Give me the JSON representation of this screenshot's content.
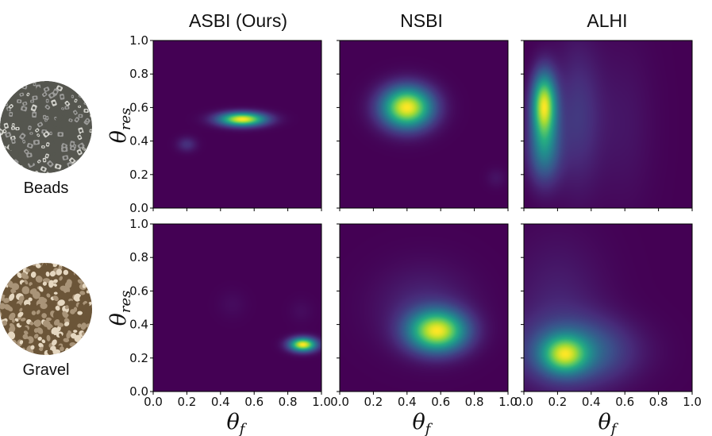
{
  "figure": {
    "columns": [
      "ASBI (Ours)",
      "NSBI",
      "ALHI"
    ],
    "rows": [
      {
        "label": "Beads",
        "texture": {
          "name": "beads-texture",
          "base": "#9a9a98",
          "dark": "#55564f",
          "light": "#d2d2cc"
        }
      },
      {
        "label": "Gravel",
        "texture": {
          "name": "gravel-texture",
          "base": "#a99478",
          "dark": "#6b5538",
          "light": "#e5d7c0"
        }
      }
    ],
    "xlabel": {
      "symbol": "θ",
      "subscript": "f"
    },
    "ylabel": {
      "symbol": "θ",
      "subscript": "res"
    },
    "colormap": "viridis",
    "colors": {
      "min": "#440154",
      "mid": "#21918c",
      "max": "#fde725"
    }
  },
  "chart_data": [
    {
      "type": "heatmap",
      "row": "Beads",
      "column": "ASBI (Ours)",
      "xlabel": "θf",
      "ylabel": "θres",
      "xlim": [
        0,
        1
      ],
      "ylim": [
        0,
        1
      ],
      "xticks": [
        "0.0",
        "0.2",
        "0.4",
        "0.6",
        "0.8",
        "1.0"
      ],
      "yticks": [
        "0.0",
        "0.2",
        "0.4",
        "0.6",
        "0.8",
        "1.0"
      ],
      "modes": [
        {
          "x": 0.53,
          "y": 0.53,
          "sx": 0.095,
          "sy": 0.028,
          "w": 1.0
        },
        {
          "x": 0.2,
          "y": 0.38,
          "sx": 0.04,
          "sy": 0.03,
          "w": 0.14
        }
      ]
    },
    {
      "type": "heatmap",
      "row": "Beads",
      "column": "NSBI",
      "xlim": [
        0,
        1
      ],
      "ylim": [
        0,
        1
      ],
      "xticks": [
        "0.0",
        "0.2",
        "0.4",
        "0.6",
        "0.8",
        "1.0"
      ],
      "yticks": [
        "0.0",
        "0.2",
        "0.4",
        "0.6",
        "0.8",
        "1.0"
      ],
      "modes": [
        {
          "x": 0.4,
          "y": 0.6,
          "sx": 0.105,
          "sy": 0.085,
          "w": 1.0
        },
        {
          "x": 0.93,
          "y": 0.18,
          "sx": 0.04,
          "sy": 0.04,
          "w": 0.05
        }
      ]
    },
    {
      "type": "heatmap",
      "row": "Beads",
      "column": "ALHI",
      "xlim": [
        0,
        1
      ],
      "ylim": [
        0,
        1
      ],
      "xticks": [
        "0.0",
        "0.2",
        "0.4",
        "0.6",
        "0.8",
        "1.0"
      ],
      "yticks": [
        "0.0",
        "0.2",
        "0.4",
        "0.6",
        "0.8",
        "1.0"
      ],
      "modes": [
        {
          "x": 0.12,
          "y": 0.62,
          "sx": 0.05,
          "sy": 0.13,
          "w": 1.0
        },
        {
          "x": 0.12,
          "y": 0.35,
          "sx": 0.065,
          "sy": 0.14,
          "w": 0.45
        },
        {
          "x": 0.32,
          "y": 0.55,
          "sx": 0.1,
          "sy": 0.3,
          "w": 0.18
        },
        {
          "x": 0.6,
          "y": 0.5,
          "sx": 0.12,
          "sy": 0.35,
          "w": 0.06
        }
      ]
    },
    {
      "type": "heatmap",
      "row": "Gravel",
      "column": "ASBI (Ours)",
      "xlabel": "θf",
      "ylabel": "θres",
      "xlim": [
        0,
        1
      ],
      "ylim": [
        0,
        1
      ],
      "xticks": [
        "0.0",
        "0.2",
        "0.4",
        "0.6",
        "0.8",
        "1.0"
      ],
      "yticks": [
        "0.0",
        "0.2",
        "0.4",
        "0.6",
        "0.8",
        "1.0"
      ],
      "modes": [
        {
          "x": 0.89,
          "y": 0.28,
          "sx": 0.055,
          "sy": 0.028,
          "w": 1.0
        },
        {
          "x": 0.47,
          "y": 0.52,
          "sx": 0.06,
          "sy": 0.06,
          "w": 0.03
        },
        {
          "x": 0.88,
          "y": 0.48,
          "sx": 0.05,
          "sy": 0.05,
          "w": 0.03
        }
      ]
    },
    {
      "type": "heatmap",
      "row": "Gravel",
      "column": "NSBI",
      "xlabel": "θf",
      "xlim": [
        0,
        1
      ],
      "ylim": [
        0,
        1
      ],
      "xticks": [
        "0.0",
        "0.2",
        "0.4",
        "0.6",
        "0.8",
        "1.0"
      ],
      "yticks": [
        "0.0",
        "0.2",
        "0.4",
        "0.6",
        "0.8",
        "1.0"
      ],
      "modes": [
        {
          "x": 0.58,
          "y": 0.36,
          "sx": 0.12,
          "sy": 0.085,
          "w": 1.0
        },
        {
          "x": 0.5,
          "y": 0.5,
          "sx": 0.2,
          "sy": 0.17,
          "w": 0.12
        }
      ]
    },
    {
      "type": "heatmap",
      "row": "Gravel",
      "column": "ALHI",
      "xlabel": "θf",
      "xlim": [
        0,
        1
      ],
      "ylim": [
        0,
        1
      ],
      "xticks": [
        "0.0",
        "0.2",
        "0.4",
        "0.6",
        "0.8",
        "1.0"
      ],
      "yticks": [
        "0.0",
        "0.2",
        "0.4",
        "0.6",
        "0.8",
        "1.0"
      ],
      "modes": [
        {
          "x": 0.24,
          "y": 0.22,
          "sx": 0.09,
          "sy": 0.075,
          "w": 1.0
        },
        {
          "x": 0.32,
          "y": 0.24,
          "sx": 0.22,
          "sy": 0.13,
          "w": 0.55
        },
        {
          "x": 0.2,
          "y": 0.45,
          "sx": 0.2,
          "sy": 0.32,
          "w": 0.16
        }
      ]
    }
  ]
}
